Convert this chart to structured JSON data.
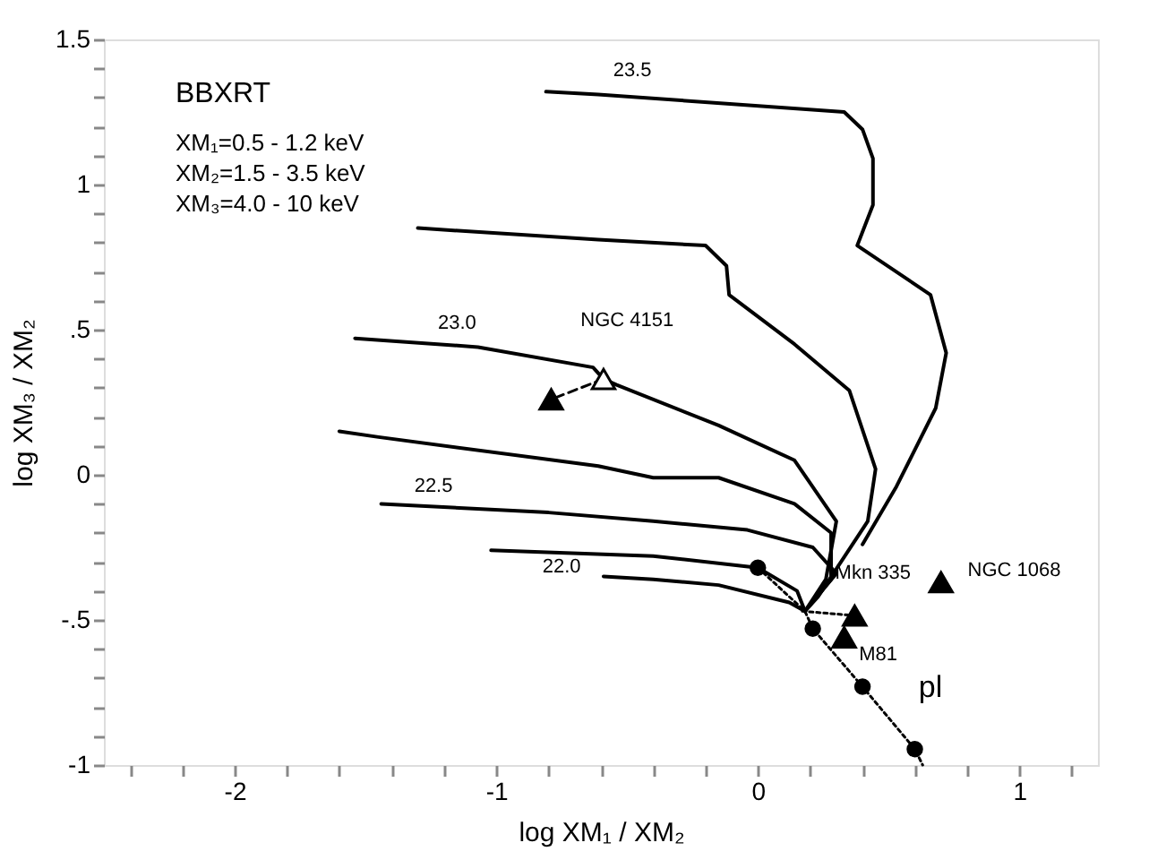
{
  "chart_data": {
    "type": "line",
    "xlabel": "log  XM₁ / XM₂",
    "ylabel": "log  XM₃ / XM₂",
    "xlim": [
      -2.5,
      1.3
    ],
    "ylim": [
      -1,
      1.5
    ],
    "xticks": [
      {
        "value": -2.4,
        "label": null
      },
      {
        "value": -2.2,
        "label": null
      },
      -2,
      {
        "value": -1.8,
        "label": null
      },
      {
        "value": -1.6,
        "label": null
      },
      {
        "value": -1.4,
        "label": null
      },
      {
        "value": -1.2,
        "label": null
      },
      -1,
      {
        "value": -0.8,
        "label": null
      },
      {
        "value": -0.6,
        "label": null
      },
      {
        "value": -0.4,
        "label": null
      },
      {
        "value": -0.2,
        "label": null
      },
      0,
      {
        "value": 0.2,
        "label": null
      },
      {
        "value": 0.4,
        "label": null
      },
      {
        "value": 0.6,
        "label": null
      },
      {
        "value": 0.8,
        "label": null
      },
      1,
      {
        "value": 1.2,
        "label": null
      }
    ],
    "yticks": [
      -1,
      {
        "value": -0.9,
        "label": null
      },
      {
        "value": -0.8,
        "label": null
      },
      {
        "value": -0.7,
        "label": null
      },
      {
        "value": -0.6,
        "label": null
      },
      {
        "value": -0.5,
        "label": "-.5"
      },
      {
        "value": -0.4,
        "label": null
      },
      {
        "value": -0.3,
        "label": null
      },
      {
        "value": -0.2,
        "label": null
      },
      {
        "value": -0.1,
        "label": null
      },
      0,
      {
        "value": 0.1,
        "label": null
      },
      {
        "value": 0.2,
        "label": null
      },
      {
        "value": 0.3,
        "label": null
      },
      {
        "value": 0.4,
        "label": null
      },
      {
        "value": 0.5,
        "label": ".5"
      },
      {
        "value": 0.6,
        "label": null
      },
      {
        "value": 0.7,
        "label": null
      },
      {
        "value": 0.8,
        "label": null
      },
      {
        "value": 0.9,
        "label": null
      },
      1,
      {
        "value": 1.1,
        "label": null
      },
      {
        "value": 1.2,
        "label": null
      },
      {
        "value": 1.3,
        "label": null
      },
      {
        "value": 1.4,
        "label": null
      },
      1.5
    ],
    "series": [
      {
        "type": "line",
        "color": "#000000",
        "line_style": "solid",
        "x": [
          -0.81,
          -0.61,
          0.33,
          0.4,
          0.44,
          0.44,
          0.38,
          0.66,
          0.72,
          0.68,
          0.53,
          0.4
        ],
        "values": [
          1.32,
          1.31,
          1.25,
          1.19,
          1.09,
          0.93,
          0.79,
          0.62,
          0.42,
          0.23,
          -0.04,
          -0.24
        ]
      },
      {
        "type": "line",
        "color": "#000000",
        "line_style": "solid",
        "x": [
          -1.3,
          -0.61,
          -0.2,
          -0.12,
          -0.11,
          0.14,
          0.35,
          0.45,
          0.42,
          0.23,
          0.18
        ],
        "values": [
          0.85,
          0.81,
          0.79,
          0.72,
          0.62,
          0.45,
          0.29,
          0.02,
          -0.16,
          -0.42,
          -0.47
        ]
      },
      {
        "type": "line",
        "color": "#000000",
        "line_style": "solid",
        "x": [
          -1.54,
          -1.07,
          -0.63,
          -0.59,
          -0.54,
          -0.15,
          0.14,
          0.3,
          0.26,
          0.18
        ],
        "values": [
          0.47,
          0.44,
          0.37,
          0.33,
          0.31,
          0.17,
          0.05,
          -0.16,
          -0.36,
          -0.47
        ]
      },
      {
        "type": "line",
        "color": "#000000",
        "line_style": "solid",
        "x": [
          -1.6,
          -1.45,
          -0.61,
          -0.4,
          -0.15,
          0.14,
          0.28,
          0.28,
          0.18
        ],
        "values": [
          0.15,
          0.13,
          0.03,
          -0.01,
          -0.01,
          -0.1,
          -0.2,
          -0.36,
          -0.47
        ]
      },
      {
        "type": "line",
        "color": "#000000",
        "line_style": "solid",
        "x": [
          -1.44,
          -0.8,
          -0.4,
          -0.04,
          0.21,
          0.3,
          0.18
        ],
        "values": [
          -0.1,
          -0.13,
          -0.16,
          -0.19,
          -0.25,
          -0.34,
          -0.47
        ]
      },
      {
        "type": "line",
        "color": "#000000",
        "line_style": "solid",
        "x": [
          -1.02,
          -0.4,
          0.0,
          0.15,
          0.18
        ],
        "values": [
          -0.26,
          -0.28,
          -0.32,
          -0.4,
          -0.47
        ]
      },
      {
        "type": "line",
        "color": "#000000",
        "line_style": "solid",
        "x": [
          -0.59,
          -0.4,
          -0.15,
          0.12,
          0.18
        ],
        "values": [
          -0.35,
          -0.36,
          -0.38,
          -0.44,
          -0.47
        ]
      },
      {
        "type": "line",
        "color": "#000000",
        "line_style": "dotted",
        "x": [
          0.0,
          0.18,
          0.21,
          0.4,
          0.6,
          0.63
        ],
        "values": [
          -0.32,
          -0.47,
          -0.53,
          -0.73,
          -0.945,
          -1.0
        ]
      },
      {
        "type": "line",
        "color": "#000000",
        "line_style": "dotted",
        "x": [
          0.17,
          0.37
        ],
        "values": [
          -0.47,
          -0.485
        ]
      },
      {
        "type": "line",
        "color": "#000000",
        "line_style": "dashed",
        "x": [
          -0.59,
          -0.79
        ],
        "values": [
          0.33,
          0.26
        ]
      },
      {
        "type": "scatter",
        "color": "#000000",
        "marker": "circle",
        "x": [
          0.0,
          0.21,
          0.4,
          0.6
        ],
        "values": [
          -0.32,
          -0.53,
          -0.73,
          -0.945
        ]
      },
      {
        "type": "scatter",
        "color": "#000000",
        "marker": "triangle",
        "x": [
          -0.79,
          0.37,
          0.33,
          0.7
        ],
        "values": [
          0.26,
          -0.485,
          -0.56,
          -0.37
        ]
      },
      {
        "type": "scatter",
        "color": "#ffffff",
        "marker": "triangle",
        "x": [
          -0.59
        ],
        "values": [
          0.33
        ]
      }
    ],
    "annotations": [
      "BBXRT",
      "XM₁=0.5 - 1.2 keV",
      "XM₂=1.5 - 3.5 keV",
      "XM₃=4.0 - 10 keV",
      "23.5",
      "23.0",
      "22.5",
      "22.0",
      "NGC 4151",
      "Mkn 335",
      "NGC 1068",
      "M81",
      "pl"
    ]
  }
}
